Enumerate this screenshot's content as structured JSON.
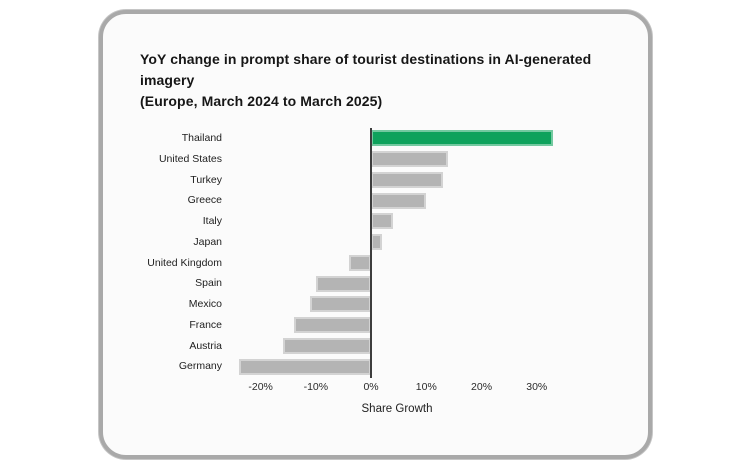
{
  "chart_data": {
    "type": "bar",
    "orientation": "horizontal",
    "title_line1": "YoY change in prompt share of tourist destinations in AI-generated imagery",
    "title_line2": "(Europe, March 2024 to March 2025)",
    "xlabel": "Share Growth",
    "categories": [
      "Thailand",
      "United States",
      "Turkey",
      "Greece",
      "Italy",
      "Japan",
      "United Kingdom",
      "Spain",
      "Mexico",
      "France",
      "Austria",
      "Germany"
    ],
    "values": [
      33,
      14,
      13,
      10,
      4,
      2,
      -4,
      -10,
      -11,
      -14,
      -16,
      -24
    ],
    "highlight_category": "Thailand",
    "xlim": [
      -25,
      40
    ],
    "xticks": [
      -20,
      -10,
      0,
      10,
      20,
      30
    ],
    "xtick_labels": [
      "-20%",
      "-10%",
      "0%",
      "10%",
      "20%",
      "30%"
    ],
    "grid": false,
    "legend": null,
    "colors": {
      "highlight_bar": "#0ea25c",
      "default_bar": "#b4b4b4",
      "axis_line": "#3d3d3d",
      "card_background": "#fbfbfb",
      "card_border": "#a9a9a9"
    }
  }
}
